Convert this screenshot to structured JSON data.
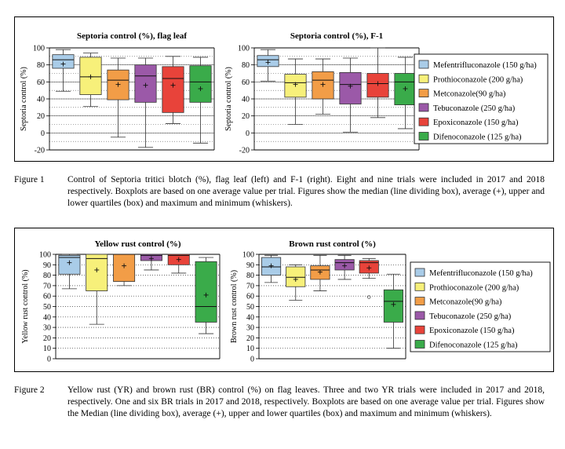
{
  "colors": {
    "Mefentrifluconazole (150 g/ha)": "#a9cce8",
    "Prothioconazole (200 g/ha)": "#f7f07a",
    "Metconazole(90 g/ha)": "#f29d47",
    "Tebuconazole (250 g/ha)": "#9b59a8",
    "Epoxiconazole (150 g/ha)": "#e8433a",
    "Difenoconazole (125 g/ha)": "#3aab4a"
  },
  "legend": {
    "items": [
      "Mefentrifluconazole (150 g/ha)",
      "Prothioconazole (200 g/ha)",
      "Metconazole(90 g/ha)",
      "Tebuconazole (250 g/ha)",
      "Epoxiconazole (150 g/ha)",
      "Difenoconazole (125 g/ha)"
    ]
  },
  "chart_data": [
    {
      "type": "boxplot",
      "title": "Septoria control (%), flag leaf",
      "xlabel": "",
      "ylabel": "Septoria control (%)",
      "ylim": [
        -20,
        100
      ],
      "yticks": [
        -20,
        0,
        20,
        40,
        60,
        80,
        100
      ],
      "grid": "dotted horizontal every 10",
      "series": [
        {
          "name": "Mefentrifluconazole (150 g/ha)",
          "min": 49,
          "q1": 76,
          "median": 86,
          "q3": 92,
          "max": 98,
          "mean": 81,
          "outliers": []
        },
        {
          "name": "Prothioconazole (200 g/ha)",
          "min": 31,
          "q1": 45,
          "median": 66,
          "q3": 89,
          "max": 94,
          "mean": 66,
          "outliers": []
        },
        {
          "name": "Metconazole(90 g/ha)",
          "min": -5,
          "q1": 39,
          "median": 62,
          "q3": 74,
          "max": 88,
          "mean": 57,
          "outliers": []
        },
        {
          "name": "Tebuconazole (250 g/ha)",
          "min": -17,
          "q1": 36,
          "median": 67,
          "q3": 80,
          "max": 88,
          "mean": 56,
          "outliers": []
        },
        {
          "name": "Epoxiconazole (150 g/ha)",
          "min": 11,
          "q1": 24,
          "median": 64,
          "q3": 78,
          "max": 90,
          "mean": 56,
          "outliers": []
        },
        {
          "name": "Difenoconazole (125 g/ha)",
          "min": -12,
          "q1": 36,
          "median": 60,
          "q3": 79,
          "max": 89,
          "mean": 52,
          "outliers": []
        }
      ]
    },
    {
      "type": "boxplot",
      "title": "Septoria control (%), F-1",
      "xlabel": "",
      "ylabel": "Septoria control (%)",
      "ylim": [
        -20,
        100
      ],
      "yticks": [
        -20,
        0,
        20,
        40,
        60,
        80,
        100
      ],
      "grid": "dotted horizontal every 10",
      "series": [
        {
          "name": "Mefentrifluconazole (150 g/ha)",
          "min": 61,
          "q1": 78,
          "median": 86,
          "q3": 91,
          "max": 98,
          "mean": 83,
          "outliers": []
        },
        {
          "name": "Prothioconazole (200 g/ha)",
          "min": 10,
          "q1": 42,
          "median": 59,
          "q3": 69,
          "max": 87,
          "mean": 57,
          "outliers": []
        },
        {
          "name": "Metconazole(90 g/ha)",
          "min": 22,
          "q1": 40,
          "median": 62,
          "q3": 72,
          "max": 87,
          "mean": 57,
          "outliers": []
        },
        {
          "name": "Tebuconazole (250 g/ha)",
          "min": 1,
          "q1": 34,
          "median": 57,
          "q3": 71,
          "max": 88,
          "mean": 55,
          "outliers": []
        },
        {
          "name": "Epoxiconazole (150 g/ha)",
          "min": 18,
          "q1": 42,
          "median": 58,
          "q3": 70,
          "max": 100,
          "mean": 58,
          "outliers": []
        },
        {
          "name": "Difenoconazole (125 g/ha)",
          "min": 5,
          "q1": 33,
          "median": 60,
          "q3": 70,
          "max": 89,
          "mean": 52,
          "outliers": []
        }
      ]
    },
    {
      "type": "boxplot",
      "title": "Yellow rust control (%)",
      "xlabel": "",
      "ylabel": "Yellow rust control (%)",
      "ylim": [
        0,
        100
      ],
      "yticks": [
        0,
        10,
        20,
        30,
        40,
        50,
        60,
        70,
        80,
        90,
        100
      ],
      "grid": "dotted horizontal every 10",
      "series": [
        {
          "name": "Mefentrifluconazole (150 g/ha)",
          "min": 67,
          "q1": 81,
          "median": 97,
          "q3": 99,
          "max": 100,
          "mean": 92,
          "outliers": []
        },
        {
          "name": "Prothioconazole (200 g/ha)",
          "min": 33,
          "q1": 65,
          "median": 96,
          "q3": 100,
          "max": 100,
          "mean": 85,
          "outliers": []
        },
        {
          "name": "Metconazole(90 g/ha)",
          "min": 70,
          "q1": 74,
          "median": 100,
          "q3": 100,
          "max": 100,
          "mean": 89,
          "outliers": []
        },
        {
          "name": "Tebuconazole (250 g/ha)",
          "min": 85,
          "q1": 94,
          "median": 99,
          "q3": 100,
          "max": 100,
          "mean": 96,
          "outliers": []
        },
        {
          "name": "Epoxiconazole (150 g/ha)",
          "min": 82,
          "q1": 90,
          "median": 99,
          "q3": 100,
          "max": 100,
          "mean": 95,
          "outliers": []
        },
        {
          "name": "Difenoconazole (125 g/ha)",
          "min": 24,
          "q1": 35,
          "median": 50,
          "q3": 93,
          "max": 97,
          "mean": 61,
          "outliers": []
        }
      ]
    },
    {
      "type": "boxplot",
      "title": "Brown rust control (%)",
      "xlabel": "",
      "ylabel": "Brown rust control (%)",
      "ylim": [
        0,
        100
      ],
      "yticks": [
        0,
        10,
        20,
        30,
        40,
        50,
        60,
        70,
        80,
        90,
        100
      ],
      "grid": "dotted horizontal every 10",
      "series": [
        {
          "name": "Mefentrifluconazole (150 g/ha)",
          "min": 73,
          "q1": 80,
          "median": 88,
          "q3": 97,
          "max": 99,
          "mean": 89,
          "outliers": []
        },
        {
          "name": "Prothioconazole (200 g/ha)",
          "min": 56,
          "q1": 69,
          "median": 78,
          "q3": 88,
          "max": 90,
          "mean": 76,
          "outliers": []
        },
        {
          "name": "Metconazole(90 g/ha)",
          "min": 65,
          "q1": 76,
          "median": 85,
          "q3": 89,
          "max": 99,
          "mean": 83,
          "outliers": []
        },
        {
          "name": "Tebuconazole (250 g/ha)",
          "min": 76,
          "q1": 85,
          "median": 92,
          "q3": 95,
          "max": 99,
          "mean": 89,
          "outliers": []
        },
        {
          "name": "Epoxiconazole (150 g/ha)",
          "min": 77,
          "q1": 82,
          "median": 92,
          "q3": 94,
          "max": 96,
          "mean": 87,
          "outliers": [
            59
          ]
        },
        {
          "name": "Difenoconazole (125 g/ha)",
          "min": 10,
          "q1": 35,
          "median": 55,
          "q3": 66,
          "max": 81,
          "mean": 52,
          "outliers": []
        }
      ]
    }
  ],
  "captions": {
    "fig1": {
      "label": "Figure 1",
      "text": "Control of Septoria tritici blotch (%), flag leaf (left) and F-1 (right). Eight and nine trials were included in 2017 and 2018 respectively. Boxplots are based on one average value per trial. Figures show the median (line dividing box), average (+), upper and lower quartiles (box) and maximum and minimum (whiskers)."
    },
    "fig2": {
      "label": "Figure 2",
      "text": "Yellow rust (YR) and brown rust (BR) control (%) on flag leaves. Three and two YR trials were included in 2017 and 2018, respectively. One and six BR trials in 2017 and 2018, respectively. Boxplots are based on one average value per trial. Figures show the Median (line dividing box), average (+), upper and lower quartiles (box) and maximum and minimum (whiskers)."
    }
  }
}
